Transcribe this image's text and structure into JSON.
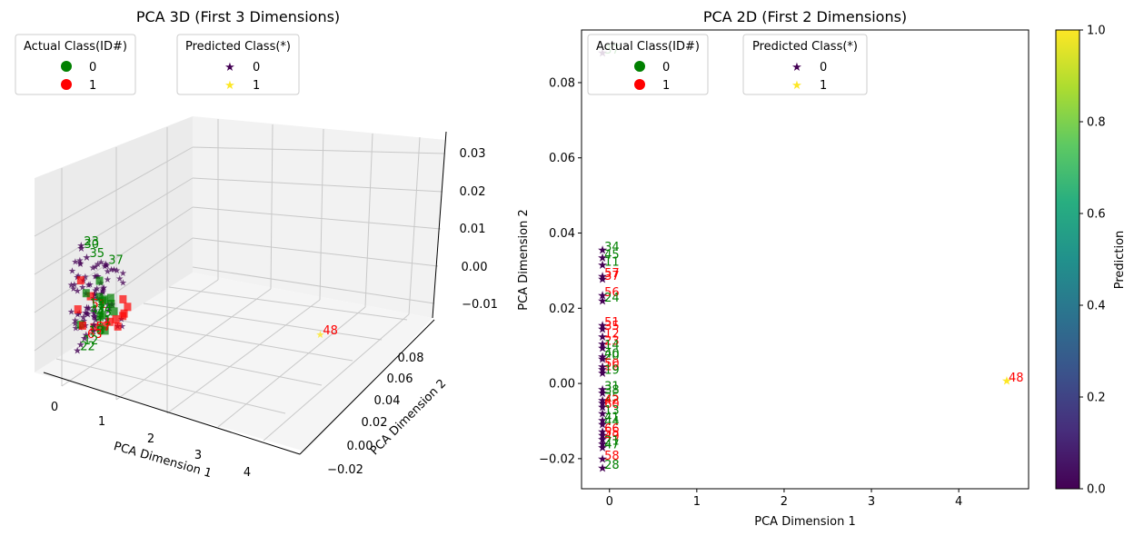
{
  "chart_data": [
    {
      "type": "scatter",
      "title": "PCA 3D (First 3 Dimensions)",
      "xlabel": "PCA Dimension 1",
      "ylabel": "PCA Dimension 2",
      "xticks": [
        "0",
        "1",
        "2",
        "3",
        "4"
      ],
      "yticks": [
        "−0.02",
        "0.00",
        "0.02",
        "0.04",
        "0.06",
        "0.08"
      ],
      "zticks": [
        "−0.01",
        "0.00",
        "0.01",
        "0.02",
        "0.03"
      ],
      "legend_actual": {
        "title": "Actual Class(ID#)",
        "entries": [
          {
            "label": "0",
            "color": "#008000"
          },
          {
            "label": "1",
            "color": "#ff0000"
          }
        ]
      },
      "legend_predicted": {
        "title": "Predicted Class(*)",
        "entries": [
          {
            "label": "0",
            "color": "#440154"
          },
          {
            "label": "1",
            "color": "#fde725"
          }
        ]
      },
      "points": [
        {
          "id": "23",
          "x": -0.1,
          "y": -0.015,
          "z": 0.028,
          "pred": 0,
          "actual": 0
        },
        {
          "id": "30",
          "x": -0.1,
          "y": -0.014,
          "z": 0.027,
          "pred": 0,
          "actual": 0
        },
        {
          "id": "35",
          "x": 0.0,
          "y": -0.012,
          "z": 0.024,
          "pred": 0,
          "actual": 0
        },
        {
          "id": "37",
          "x": 0.05,
          "y": 0.088,
          "z": 0.02,
          "pred": 0,
          "actual": 0
        },
        {
          "id": "1",
          "x": 0.0,
          "y": 0.035,
          "z": 0.005,
          "pred": 0,
          "actual": 0
        },
        {
          "id": "51",
          "x": -0.05,
          "y": 0.015,
          "z": 0.006,
          "pred": 0,
          "actual": 1
        },
        {
          "id": "34",
          "x": 0.0,
          "y": 0.034,
          "z": 0.004,
          "pred": 0,
          "actual": 0
        },
        {
          "id": "45",
          "x": 0.0,
          "y": 0.033,
          "z": 0.003,
          "pred": 0,
          "actual": 0
        },
        {
          "id": "13",
          "x": -0.1,
          "y": 0.02,
          "z": 0.006,
          "pred": 0,
          "actual": 0
        },
        {
          "id": "47",
          "x": -0.05,
          "y": 0.01,
          "z": 0.004,
          "pred": 0,
          "actual": 0
        },
        {
          "id": "11",
          "x": 0.0,
          "y": 0.031,
          "z": 0.0,
          "pred": 0,
          "actual": 0
        },
        {
          "id": "57",
          "x": 0.0,
          "y": 0.028,
          "z": -0.002,
          "pred": 0,
          "actual": 1
        },
        {
          "id": "18",
          "x": -0.05,
          "y": 0.0,
          "z": -0.003,
          "pred": 0,
          "actual": 0
        },
        {
          "id": "63",
          "x": -0.05,
          "y": -0.01,
          "z": -0.004,
          "pred": 0,
          "actual": 1
        },
        {
          "id": "12",
          "x": -0.1,
          "y": -0.018,
          "z": -0.006,
          "pred": 0,
          "actual": 0
        },
        {
          "id": "22",
          "x": -0.15,
          "y": -0.022,
          "z": -0.008,
          "pred": 0,
          "actual": 0
        },
        {
          "id": "48",
          "x": 4.55,
          "y": 0.0,
          "z": 0.0,
          "pred": 1,
          "actual": 1
        }
      ]
    },
    {
      "type": "scatter",
      "title": "PCA 2D (First 2 Dimensions)",
      "xlabel": "PCA Dimension 1",
      "ylabel": "PCA Dimension 2",
      "xlim": [
        -0.32,
        4.8
      ],
      "ylim": [
        -0.028,
        0.094
      ],
      "xticks": [
        0,
        1,
        2,
        3,
        4
      ],
      "yticks": [
        -0.02,
        0.0,
        0.02,
        0.04,
        0.06,
        0.08
      ],
      "ytick_labels": [
        "−0.02",
        "0.00",
        "0.02",
        "0.04",
        "0.06",
        "0.08"
      ],
      "colorbar": {
        "label": "Prediction",
        "min": 0.0,
        "max": 1.0,
        "ticks": [
          "0.0",
          "0.2",
          "0.4",
          "0.6",
          "0.8",
          "1.0"
        ]
      },
      "legend_actual": {
        "title": "Actual Class(ID#)",
        "entries": [
          {
            "label": "0",
            "color": "#008000"
          },
          {
            "label": "1",
            "color": "#ff0000"
          }
        ]
      },
      "legend_predicted": {
        "title": "Predicted Class(*)",
        "entries": [
          {
            "label": "0",
            "color": "#440154"
          },
          {
            "label": "1",
            "color": "#fde725"
          }
        ]
      },
      "points": [
        {
          "id": "37",
          "x": -0.08,
          "y": 0.088,
          "pred": 0,
          "actual": 0
        },
        {
          "id": "34",
          "x": -0.08,
          "y": 0.0355,
          "pred": 0,
          "actual": 0
        },
        {
          "id": "45",
          "x": -0.08,
          "y": 0.0335,
          "pred": 0,
          "actual": 0
        },
        {
          "id": "11",
          "x": -0.08,
          "y": 0.0315,
          "pred": 0,
          "actual": 0
        },
        {
          "id": "57",
          "x": -0.08,
          "y": 0.0285,
          "pred": 0,
          "actual": 1
        },
        {
          "id": "37",
          "x": -0.08,
          "y": 0.0278,
          "pred": 0,
          "actual": 1
        },
        {
          "id": "56",
          "x": -0.08,
          "y": 0.0235,
          "pred": 0,
          "actual": 1
        },
        {
          "id": "24",
          "x": -0.08,
          "y": 0.022,
          "pred": 0,
          "actual": 0
        },
        {
          "id": "51",
          "x": -0.08,
          "y": 0.0155,
          "pred": 0,
          "actual": 1
        },
        {
          "id": "35",
          "x": -0.08,
          "y": 0.0145,
          "pred": 0,
          "actual": 1
        },
        {
          "id": "12",
          "x": -0.08,
          "y": 0.0125,
          "pred": 0,
          "actual": 1
        },
        {
          "id": "23",
          "x": -0.08,
          "y": 0.0105,
          "pred": 0,
          "actual": 1
        },
        {
          "id": "14",
          "x": -0.08,
          "y": 0.0095,
          "pred": 0,
          "actual": 0
        },
        {
          "id": "40",
          "x": -0.08,
          "y": 0.0072,
          "pred": 0,
          "actual": 0
        },
        {
          "id": "20",
          "x": -0.08,
          "y": 0.0065,
          "pred": 0,
          "actual": 0
        },
        {
          "id": "50",
          "x": -0.08,
          "y": 0.0045,
          "pred": 0,
          "actual": 1
        },
        {
          "id": "16",
          "x": -0.08,
          "y": 0.0038,
          "pred": 0,
          "actual": 1
        },
        {
          "id": "19",
          "x": -0.08,
          "y": 0.0028,
          "pred": 0,
          "actual": 0
        },
        {
          "id": "31",
          "x": -0.08,
          "y": -0.0015,
          "pred": 0,
          "actual": 0
        },
        {
          "id": "38",
          "x": -0.08,
          "y": -0.0025,
          "pred": 0,
          "actual": 0
        },
        {
          "id": "25",
          "x": -0.08,
          "y": -0.0045,
          "pred": 0,
          "actual": 0
        },
        {
          "id": "42",
          "x": -0.08,
          "y": -0.0052,
          "pred": 0,
          "actual": 1
        },
        {
          "id": "60",
          "x": -0.08,
          "y": -0.0062,
          "pred": 0,
          "actual": 1
        },
        {
          "id": "13",
          "x": -0.08,
          "y": -0.008,
          "pred": 0,
          "actual": 0
        },
        {
          "id": "41",
          "x": -0.08,
          "y": -0.0098,
          "pred": 0,
          "actual": 0
        },
        {
          "id": "44",
          "x": -0.08,
          "y": -0.0108,
          "pred": 0,
          "actual": 0
        },
        {
          "id": "66",
          "x": -0.08,
          "y": -0.0128,
          "pred": 0,
          "actual": 1
        },
        {
          "id": "55",
          "x": -0.08,
          "y": -0.0138,
          "pred": 0,
          "actual": 1
        },
        {
          "id": "49",
          "x": -0.08,
          "y": -0.0148,
          "pred": 0,
          "actual": 1
        },
        {
          "id": "21",
          "x": -0.08,
          "y": -0.016,
          "pred": 0,
          "actual": 0
        },
        {
          "id": "47",
          "x": -0.08,
          "y": -0.017,
          "pred": 0,
          "actual": 0
        },
        {
          "id": "58",
          "x": -0.08,
          "y": -0.02,
          "pred": 0,
          "actual": 1
        },
        {
          "id": "28",
          "x": -0.08,
          "y": -0.0225,
          "pred": 0,
          "actual": 0
        },
        {
          "id": "48",
          "x": 4.55,
          "y": 0.0008,
          "pred": 1,
          "actual": 1
        }
      ]
    }
  ]
}
